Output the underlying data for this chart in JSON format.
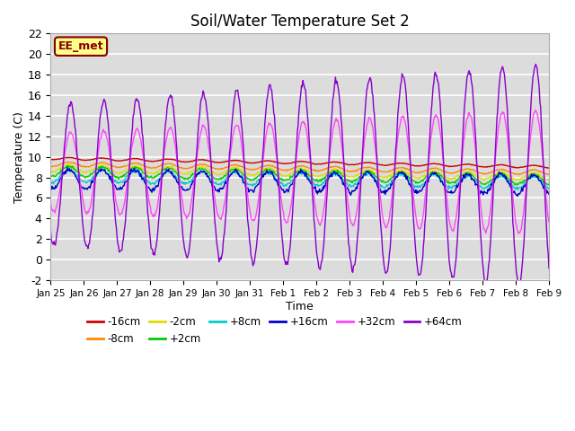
{
  "title": "Soil/Water Temperature Set 2",
  "xlabel": "Time",
  "ylabel": "Temperature (C)",
  "ylim": [
    -2,
    22
  ],
  "xlim": [
    0,
    15
  ],
  "x_tick_labels": [
    "Jan 25",
    "Jan 26",
    "Jan 27",
    "Jan 28",
    "Jan 29",
    "Jan 30",
    "Jan 31",
    "Feb 1",
    "Feb 2",
    "Feb 3",
    "Feb 4",
    "Feb 5",
    "Feb 6",
    "Feb 7",
    "Feb 8",
    "Feb 9"
  ],
  "bg_color": "#dcdcdc",
  "series_order": [
    "-16cm",
    "-8cm",
    "-2cm",
    "+2cm",
    "+8cm",
    "+16cm",
    "+32cm",
    "+64cm"
  ],
  "series": {
    "-16cm": {
      "color": "#cc0000",
      "base": 9.85,
      "amp_daily": 0.12,
      "trend": -0.055
    },
    "-8cm": {
      "color": "#ff8800",
      "base": 9.3,
      "amp_daily": 0.22,
      "trend": -0.055
    },
    "-2cm": {
      "color": "#dddd00",
      "base": 8.9,
      "amp_daily": 0.35,
      "trend": -0.055
    },
    "+2cm": {
      "color": "#00cc00",
      "base": 8.6,
      "amp_daily": 0.5,
      "trend": -0.055
    },
    "+8cm": {
      "color": "#00cccc",
      "base": 8.15,
      "amp_daily": 0.6,
      "trend": -0.045
    },
    "+16cm": {
      "color": "#0000cc",
      "base": 7.85,
      "amp_daily": 0.95,
      "trend": -0.035
    },
    "+32cm": {
      "color": "#ff44ff",
      "base": 8.5,
      "amp_daily": 3.8,
      "trend": 0.0
    },
    "+64cm": {
      "color": "#8800cc",
      "base": 8.2,
      "amp_daily": 6.8,
      "trend": 0.0
    }
  },
  "annotation_text": "EE_met",
  "annotation_bg": "#ffff88",
  "annotation_border": "#880000"
}
